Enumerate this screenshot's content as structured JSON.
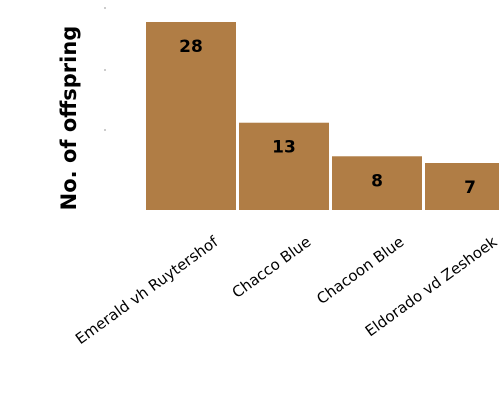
{
  "chart_data": {
    "type": "bar",
    "title": "",
    "xlabel": "",
    "ylabel": "No. of offspring",
    "categories": [
      "Emerald vh Ruytershof",
      "Chacco Blue",
      "Chacoon Blue",
      "Eldorado vd Zeshoek"
    ],
    "values": [
      28,
      13,
      8,
      7
    ],
    "ylim": [
      0,
      28
    ],
    "grid": false,
    "legend": "none",
    "bar_color": "#b07d45",
    "value_labels": [
      "28",
      "13",
      "8",
      "7"
    ]
  }
}
